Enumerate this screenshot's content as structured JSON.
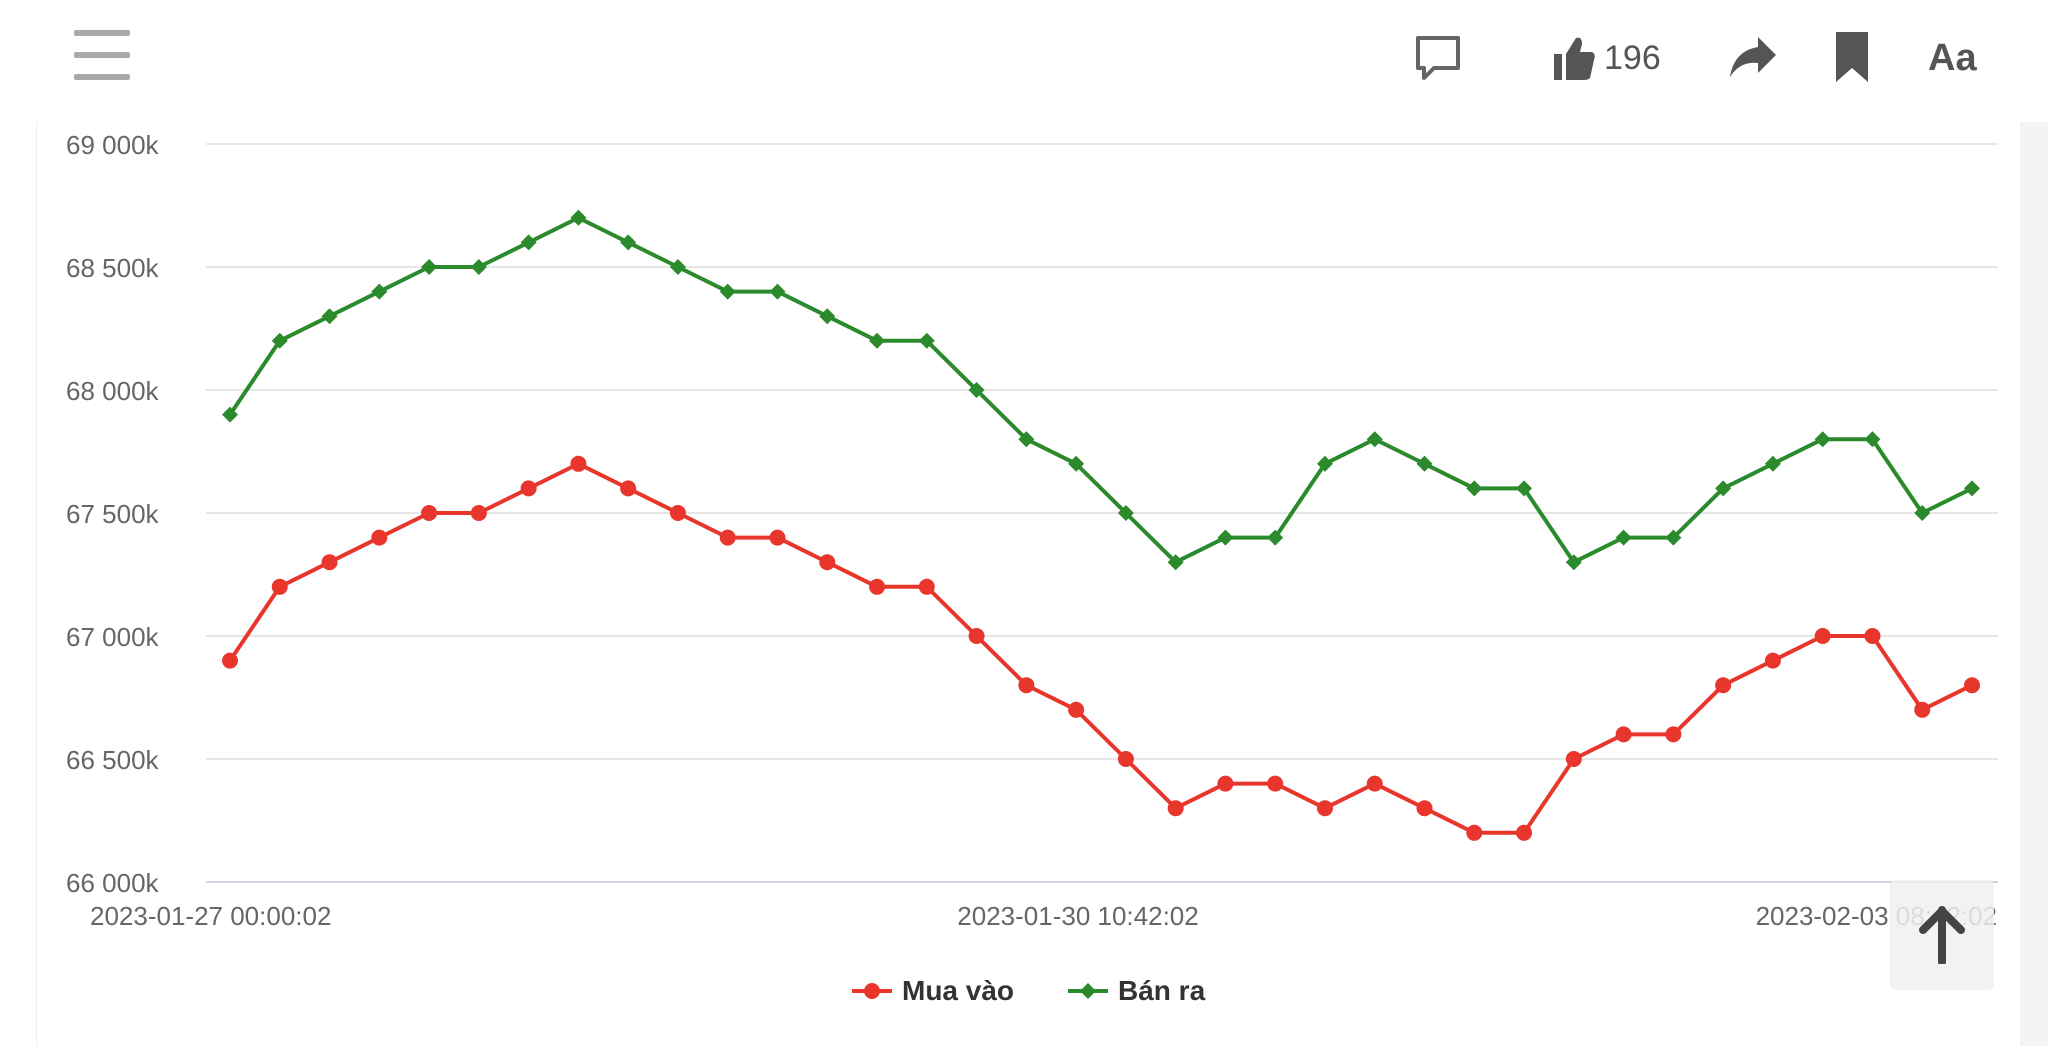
{
  "header": {
    "like_count": "196",
    "font_button": "Aa",
    "icons": [
      "menu-icon",
      "comment-icon",
      "thumbs-up-icon",
      "share-icon",
      "bookmark-icon",
      "arrow-up-icon"
    ]
  },
  "chart_data": {
    "type": "line",
    "x_tick_labels": [
      "2023-01-27 00:00:02",
      "2023-01-30 10:42:02",
      "2023-02-03 08:42:02"
    ],
    "y_tick_labels": [
      "69 000k",
      "68 500k",
      "68 000k",
      "67 500k",
      "67 000k",
      "66 500k",
      "66 000k"
    ],
    "y_ticks": [
      69000,
      68500,
      68000,
      67500,
      67000,
      66500,
      66000
    ],
    "ylim": [
      66000,
      69000
    ],
    "grid": true,
    "legend_position": "bottom",
    "series": [
      {
        "name": "Mua vào",
        "color": "#e8362d",
        "marker": "circle",
        "values": [
          66900,
          67200,
          67300,
          67400,
          67500,
          67500,
          67600,
          67700,
          67600,
          67500,
          67400,
          67400,
          67300,
          67200,
          67200,
          67000,
          66800,
          66700,
          66500,
          66300,
          66400,
          66400,
          66300,
          66400,
          66300,
          66200,
          66200,
          66500,
          66600,
          66600,
          66800,
          66900,
          67000,
          67000,
          66700,
          66800
        ]
      },
      {
        "name": "Bán ra",
        "color": "#2b8a2b",
        "marker": "diamond",
        "values": [
          67900,
          68200,
          68300,
          68400,
          68500,
          68500,
          68600,
          68700,
          68600,
          68500,
          68400,
          68400,
          68300,
          68200,
          68200,
          68000,
          67800,
          67700,
          67500,
          67300,
          67400,
          67400,
          67700,
          67800,
          67700,
          67600,
          67600,
          67300,
          67400,
          67400,
          67600,
          67700,
          67800,
          67800,
          67500,
          67600
        ]
      }
    ]
  }
}
